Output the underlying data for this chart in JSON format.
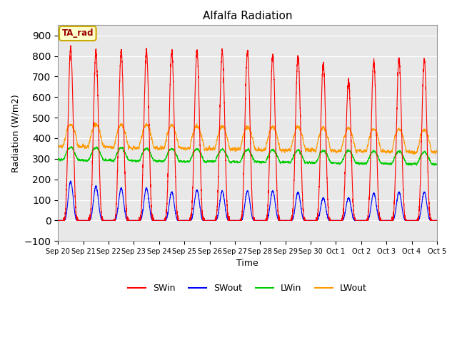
{
  "title": "Alfalfa Radiation",
  "xlabel": "Time",
  "ylabel": "Radiation (W/m2)",
  "ylim": [
    -100,
    950
  ],
  "yticks": [
    -100,
    0,
    100,
    200,
    300,
    400,
    500,
    600,
    700,
    800,
    900
  ],
  "plot_bg_color": "#e8e8e8",
  "fig_bg_color": "#ffffff",
  "series_colors": {
    "SWin": "#ff0000",
    "SWout": "#0000ff",
    "LWin": "#00cc00",
    "LWout": "#ff9900"
  },
  "annotation_label": "TA_rad",
  "annotation_bg": "#ffffcc",
  "annotation_border": "#ccaa00",
  "n_days": 15,
  "xtick_labels": [
    "Sep 20",
    "Sep 21",
    "Sep 22",
    "Sep 23",
    "Sep 24",
    "Sep 25",
    "Sep 26",
    "Sep 27",
    "Sep 28",
    "Sep 29",
    "Sep 30",
    "Oct 1",
    "Oct 2",
    "Oct 3",
    "Oct 4",
    "Oct 5"
  ],
  "SWin_peaks": [
    840,
    820,
    820,
    820,
    820,
    825,
    820,
    820,
    800,
    800,
    760,
    680,
    775,
    785,
    780
  ],
  "SWout_peaks": [
    200,
    175,
    165,
    165,
    145,
    155,
    150,
    150,
    150,
    145,
    115,
    115,
    140,
    145,
    145
  ],
  "legend_entries": [
    "SWin",
    "SWout",
    "LWin",
    "LWout"
  ],
  "legend_colors": [
    "#ff0000",
    "#0000ff",
    "#00cc00",
    "#ff9900"
  ]
}
